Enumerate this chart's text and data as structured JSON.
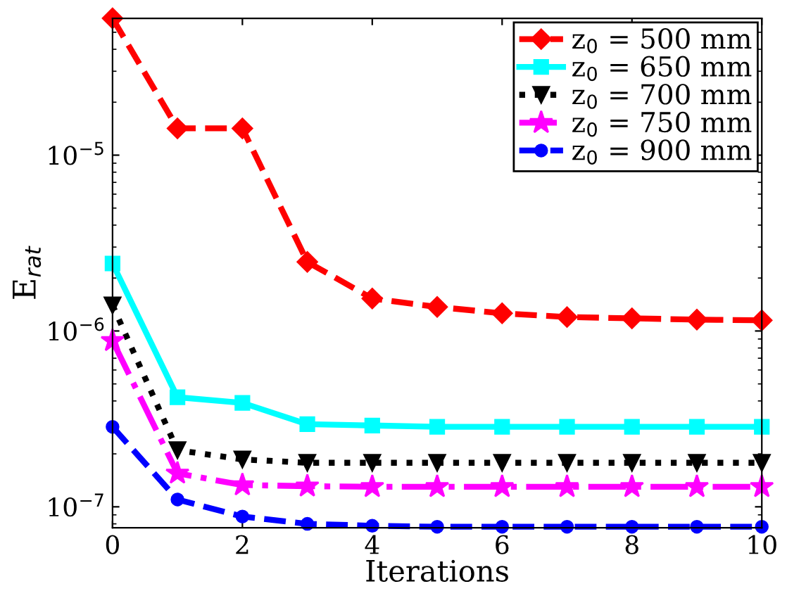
{
  "chart_data": {
    "type": "line",
    "xlabel": "Iterations",
    "ylabel": "E$_{rat}$",
    "x": [
      0,
      1,
      2,
      3,
      4,
      5,
      6,
      7,
      8,
      9,
      10
    ],
    "series": [
      {
        "name": "z$_{0}$ = 500 mm",
        "color": "#ff0000",
        "marker": "diamond",
        "line_style": "dashed",
        "values": [
          6e-05,
          1.42e-05,
          1.42e-05,
          2.47e-06,
          1.53e-06,
          1.37e-06,
          1.26e-06,
          1.2e-06,
          1.18e-06,
          1.16e-06,
          1.15e-06
        ]
      },
      {
        "name": "z$_{0}$ = 650 mm",
        "color": "#00ffff",
        "marker": "square",
        "line_style": "solid",
        "values": [
          2.42e-06,
          4.2e-07,
          3.9e-07,
          2.95e-07,
          2.9e-07,
          2.85e-07,
          2.85e-07,
          2.85e-07,
          2.85e-07,
          2.85e-07,
          2.85e-07
        ]
      },
      {
        "name": "z$_{0}$ = 700 mm",
        "color": "#000000",
        "marker": "triangle",
        "line_style": "dotted",
        "values": [
          1.4e-06,
          2.1e-07,
          1.86e-07,
          1.78e-07,
          1.78e-07,
          1.78e-07,
          1.78e-07,
          1.78e-07,
          1.78e-07,
          1.78e-07,
          1.78e-07
        ]
      },
      {
        "name": "z$_{0}$ = 750 mm",
        "color": "#ff00ff",
        "marker": "star",
        "line_style": "dashdot",
        "values": [
          8.8e-07,
          1.55e-07,
          1.33e-07,
          1.31e-07,
          1.3e-07,
          1.3e-07,
          1.3e-07,
          1.3e-07,
          1.3e-07,
          1.3e-07,
          1.3e-07
        ]
      },
      {
        "name": "z$_{0}$ = 900 mm",
        "color": "#0000ff",
        "marker": "circle",
        "line_style": "dashed",
        "values": [
          2.85e-07,
          1.1e-07,
          8.8e-08,
          8e-08,
          7.8e-08,
          7.7e-08,
          7.7e-08,
          7.7e-08,
          7.7e-08,
          7.7e-08,
          7.7e-08
        ]
      }
    ],
    "log": "y",
    "xlim": [
      0,
      10
    ],
    "ylim": [
      7.6e-08,
      6e-05
    ],
    "xticks": [
      0,
      2,
      4,
      6,
      8,
      10
    ],
    "yticks": [
      {
        "value": 1e-07,
        "label": "10$^{−7}$"
      },
      {
        "value": 1e-06,
        "label": "10$^{−6}$"
      },
      {
        "value": 1e-05,
        "label": "10$^{−5}$"
      }
    ],
    "grid": false,
    "legend": "top right"
  }
}
